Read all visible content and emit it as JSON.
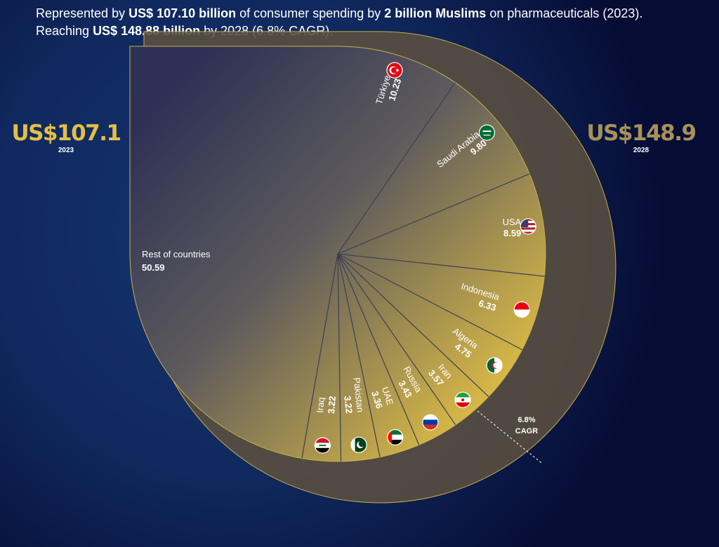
{
  "header": {
    "line1": {
      "t1": "Represented by ",
      "b1": "US$ 107.10 billion",
      "t2": " of consumer spending by ",
      "b2": "2 billion Muslims",
      "t3": " on pharmaceuticals (2023)."
    },
    "line2": {
      "t1": "Reaching ",
      "b1": "US$ 148.88 billion",
      "t2": " by 2028 (6.8% CAGR)."
    }
  },
  "totals": {
    "y2023": {
      "amount": "US$107.1",
      "year": "2023"
    },
    "y2028": {
      "amount": "US$148.9",
      "year": "2028"
    }
  },
  "cagr_label": {
    "pct": "6.8%",
    "text": "CAGR"
  },
  "colors": {
    "accent_2023": "#e3bf45",
    "accent_2028": "#a8915a",
    "background": "#060c34",
    "pie_dark": "#2e3358",
    "pie_gold": "#d8ba48",
    "outer_ring": "#5a5040"
  },
  "chart_data": {
    "type": "pie",
    "title": "",
    "unit": "US$ billion",
    "total_2023": 107.1,
    "total_2028": 148.9,
    "cagr_pct": 6.8,
    "slices": [
      {
        "name": "Türkiye",
        "value": "10.23",
        "flag": "turkey-flag-icon"
      },
      {
        "name": "Saudi Arabia",
        "value": "9.80",
        "flag": "saudi-arabia-flag-icon"
      },
      {
        "name": "USA",
        "value": "8.59",
        "flag": "usa-flag-icon"
      },
      {
        "name": "Indonesia",
        "value": "6.33",
        "flag": "indonesia-flag-icon"
      },
      {
        "name": "Algeria",
        "value": "4.75",
        "flag": "algeria-flag-icon"
      },
      {
        "name": "Iran",
        "value": "3.57",
        "flag": "iran-flag-icon"
      },
      {
        "name": "Russia",
        "value": "3.43",
        "flag": "russia-flag-icon"
      },
      {
        "name": "UAE",
        "value": "3.36",
        "flag": "uae-flag-icon"
      },
      {
        "name": "Pakistan",
        "value": "3.22",
        "flag": "pakistan-flag-icon"
      },
      {
        "name": "Iraq",
        "value": "3.22",
        "flag": "iraq-flag-icon"
      },
      {
        "name": "Rest of countries",
        "value": "50.59",
        "flag": ""
      }
    ]
  }
}
